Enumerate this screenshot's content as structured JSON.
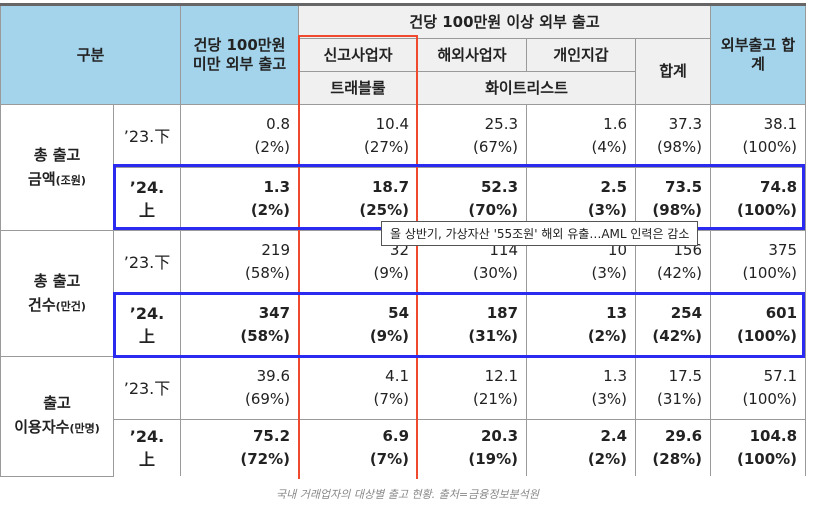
{
  "header": {
    "category": "구분",
    "under_1m": "건당 100만원 미만 외부 출고",
    "over_1m": "건당 100만원 이상 외부 출고",
    "registered": "신고사업자",
    "travel_rule": "트래블룰",
    "overseas": "해외사업자",
    "personal_wallet": "개인지갑",
    "whitelist": "화이트리스트",
    "subtotal": "합계",
    "total": "외부출고 합계"
  },
  "groups": [
    {
      "label": "총 출고",
      "unit_label": "금액",
      "unit": "(조원)",
      "rows": [
        {
          "period": "’23.下",
          "values": [
            "0.8",
            "10.4",
            "25.3",
            "1.6",
            "37.3",
            "38.1"
          ],
          "shares": [
            "(2%)",
            "(27%)",
            "(67%)",
            "(4%)",
            "(98%)",
            "(100%)"
          ]
        },
        {
          "period": "’24.上",
          "values": [
            "1.3",
            "18.7",
            "52.3",
            "2.5",
            "73.5",
            "74.8"
          ],
          "shares": [
            "(2%)",
            "(25%)",
            "(70%)",
            "(3%)",
            "(98%)",
            "(100%)"
          ]
        }
      ]
    },
    {
      "label": "총 출고",
      "unit_label": "건수",
      "unit": "(만건)",
      "rows": [
        {
          "period": "’23.下",
          "values": [
            "219",
            "32",
            "114",
            "10",
            "156",
            "375"
          ],
          "shares": [
            "(58%)",
            "(9%)",
            "(30%)",
            "(3%)",
            "(42%)",
            "(100%)"
          ]
        },
        {
          "period": "’24.上",
          "values": [
            "347",
            "54",
            "187",
            "13",
            "254",
            "601"
          ],
          "shares": [
            "(58%)",
            "(9%)",
            "(31%)",
            "(2%)",
            "(42%)",
            "(100%)"
          ]
        }
      ]
    },
    {
      "label": "출고",
      "unit_label": "이용자수",
      "unit": "(만명)",
      "rows": [
        {
          "period": "’23.下",
          "values": [
            "39.6",
            "4.1",
            "12.1",
            "1.3",
            "17.5",
            "57.1"
          ],
          "shares": [
            "(69%)",
            "(7%)",
            "(21%)",
            "(3%)",
            "(31%)",
            "(100%)"
          ]
        },
        {
          "period": "’24.上",
          "values": [
            "75.2",
            "6.9",
            "20.3",
            "2.4",
            "29.6",
            "104.8"
          ],
          "shares": [
            "(72%)",
            "(7%)",
            "(19%)",
            "(2%)",
            "(28%)",
            "(100%)"
          ]
        }
      ]
    }
  ],
  "tooltip": "올 상반기, 가상자산 '55조원' 해외 유출…AML 인력은 감소",
  "caption": "국내 거래업자의 대상별 출고 현황. 출처=금융정보분석원",
  "colors": {
    "header_blue": "#a3d4ec",
    "highlight_red": "#f04a2e",
    "highlight_blue": "#2a2af0"
  }
}
